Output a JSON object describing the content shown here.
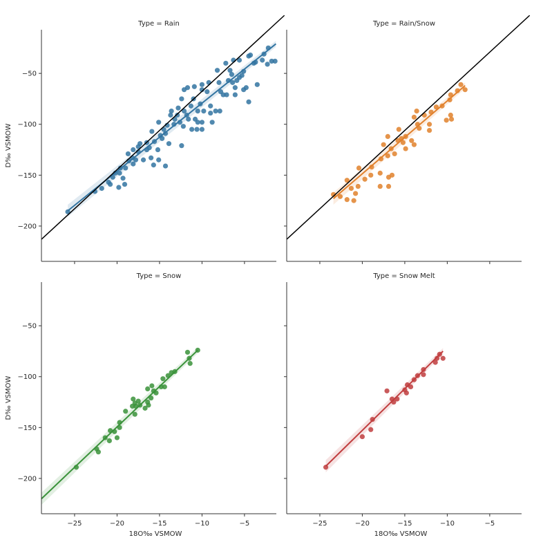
{
  "chart_data": {
    "type": "scatter",
    "layout": "facet-grid-2x2",
    "facet_variable": "Type",
    "xlabel": "18O‰ VSMOW",
    "ylabel": "D‰ VSMOW",
    "xlim": [
      -28.9,
      -1.25
    ],
    "ylim": [
      -234.7,
      -7.1
    ],
    "xticks": [
      -25,
      -20,
      -15,
      -10,
      -5
    ],
    "xtick_labels": [
      "−25",
      "−20",
      "−15",
      "−10",
      "−5"
    ],
    "yticks": [
      -50,
      -100,
      -150,
      -200
    ],
    "ytick_labels": [
      "−50",
      "−100",
      "−150",
      "−200"
    ],
    "grid": false,
    "reference_line": {
      "name": "meteoric water line",
      "color": "#000000",
      "points": [
        [
          -28.9,
          -213
        ],
        [
          -0.3,
          7
        ]
      ],
      "facets": [
        "Rain",
        "Rain/Snow"
      ]
    },
    "facets": [
      {
        "title": "Type = Rain",
        "name": "Rain",
        "color": "#3274a1",
        "fit": [
          [
            -25.8,
            -185
          ],
          [
            -1.3,
            -21
          ]
        ],
        "points": [
          [
            -25.8,
            -186
          ],
          [
            -22.6,
            -166
          ],
          [
            -21.8,
            -163
          ],
          [
            -21.0,
            -157
          ],
          [
            -20.5,
            -152
          ],
          [
            -20.8,
            -159
          ],
          [
            -19.8,
            -162
          ],
          [
            -19.1,
            -159
          ],
          [
            -19.3,
            -153
          ],
          [
            -19.7,
            -148
          ],
          [
            -19.0,
            -143
          ],
          [
            -18.7,
            -129
          ],
          [
            -18.6,
            -136
          ],
          [
            -18.1,
            -139
          ],
          [
            -17.8,
            -135
          ],
          [
            -18.2,
            -133
          ],
          [
            -16.9,
            -135
          ],
          [
            -17.3,
            -119
          ],
          [
            -16.5,
            -118
          ],
          [
            -16.2,
            -123
          ],
          [
            -15.9,
            -107
          ],
          [
            -16.0,
            -133
          ],
          [
            -15.7,
            -140
          ],
          [
            -15.1,
            -135
          ],
          [
            -14.3,
            -141
          ],
          [
            -15.1,
            -98
          ],
          [
            -14.9,
            -111
          ],
          [
            -14.5,
            -105
          ],
          [
            -14.3,
            -109
          ],
          [
            -15.2,
            -125
          ],
          [
            -13.9,
            -119
          ],
          [
            -13.7,
            -91
          ],
          [
            -13.6,
            -87
          ],
          [
            -13.2,
            -95
          ],
          [
            -12.8,
            -84
          ],
          [
            -12.6,
            -98
          ],
          [
            -12.4,
            -121
          ],
          [
            -12.2,
            -102
          ],
          [
            -12.4,
            -75
          ],
          [
            -12.1,
            -66
          ],
          [
            -11.7,
            -64
          ],
          [
            -11.8,
            -91
          ],
          [
            -11.3,
            -82
          ],
          [
            -11.0,
            -75
          ],
          [
            -11.2,
            -105
          ],
          [
            -10.6,
            -105
          ],
          [
            -10.8,
            -95
          ],
          [
            -10.9,
            -63
          ],
          [
            -10.0,
            -105
          ],
          [
            -10.0,
            -98
          ],
          [
            -10.5,
            -87
          ],
          [
            -10.2,
            -80
          ],
          [
            -9.8,
            -87
          ],
          [
            -10.0,
            -66
          ],
          [
            -10.0,
            -61
          ],
          [
            -9.4,
            -68
          ],
          [
            -9.2,
            -59
          ],
          [
            -9.0,
            -82
          ],
          [
            -8.8,
            -98
          ],
          [
            -9.0,
            -89
          ],
          [
            -8.4,
            -87
          ],
          [
            -7.9,
            -87
          ],
          [
            -8.0,
            -59
          ],
          [
            -7.8,
            -68
          ],
          [
            -7.5,
            -71
          ],
          [
            -7.1,
            -71
          ],
          [
            -6.9,
            -57
          ],
          [
            -6.1,
            -71
          ],
          [
            -5.6,
            -54
          ],
          [
            -5.1,
            -66
          ],
          [
            -4.8,
            -64
          ],
          [
            -4.5,
            -78
          ],
          [
            -6.5,
            -51
          ],
          [
            -6.4,
            -59
          ],
          [
            -5.9,
            -57
          ],
          [
            -5.3,
            -52
          ],
          [
            -5.1,
            -48
          ],
          [
            -8.2,
            -47
          ],
          [
            -7.2,
            -40
          ],
          [
            -6.3,
            -37
          ],
          [
            -5.6,
            -37
          ],
          [
            -4.5,
            -33
          ],
          [
            -3.5,
            -61
          ],
          [
            -3.7,
            -39
          ],
          [
            -3.9,
            -40
          ],
          [
            -2.9,
            -37
          ],
          [
            -2.3,
            -41
          ],
          [
            -2.7,
            -31
          ],
          [
            -2.2,
            -25
          ],
          [
            -1.8,
            -38
          ],
          [
            -1.4,
            -38
          ],
          [
            -4.3,
            -32
          ],
          [
            -6.7,
            -47
          ],
          [
            -6.1,
            -64
          ],
          [
            -10.5,
            -98
          ],
          [
            -11.6,
            -95
          ],
          [
            -12.1,
            -87
          ],
          [
            -12.9,
            -91
          ],
          [
            -13.3,
            -100
          ],
          [
            -14.1,
            -101
          ],
          [
            -14.7,
            -114
          ],
          [
            -15.6,
            -117
          ],
          [
            -16.5,
            -125
          ],
          [
            -17.5,
            -127
          ],
          [
            -17.5,
            -122
          ],
          [
            -18.1,
            -125
          ],
          [
            -19.6,
            -143
          ],
          [
            -20.2,
            -148
          ]
        ]
      },
      {
        "title": "Type = Rain/Snow",
        "name": "Rain/Snow",
        "color": "#e1812c",
        "fit": [
          [
            -23.4,
            -173
          ],
          [
            -7.9,
            -62
          ]
        ],
        "points": [
          [
            -23.4,
            -169
          ],
          [
            -21.8,
            -155
          ],
          [
            -22.6,
            -171
          ],
          [
            -21.8,
            -174
          ],
          [
            -21.0,
            -175
          ],
          [
            -21.3,
            -163
          ],
          [
            -20.8,
            -168
          ],
          [
            -20.5,
            -161
          ],
          [
            -20.4,
            -143
          ],
          [
            -19.7,
            -154
          ],
          [
            -19.0,
            -150
          ],
          [
            -18.9,
            -142
          ],
          [
            -17.9,
            -148
          ],
          [
            -17.9,
            -161
          ],
          [
            -16.9,
            -161
          ],
          [
            -16.9,
            -152
          ],
          [
            -16.5,
            -150
          ],
          [
            -17.8,
            -134
          ],
          [
            -17.0,
            -131
          ],
          [
            -17.5,
            -120
          ],
          [
            -17.0,
            -112
          ],
          [
            -16.6,
            -124
          ],
          [
            -16.2,
            -129
          ],
          [
            -15.7,
            -105
          ],
          [
            -15.4,
            -114
          ],
          [
            -15.2,
            -118
          ],
          [
            -14.9,
            -124
          ],
          [
            -14.2,
            -116
          ],
          [
            -13.9,
            -120
          ],
          [
            -13.9,
            -93
          ],
          [
            -13.6,
            -87
          ],
          [
            -13.5,
            -100
          ],
          [
            -13.3,
            -104
          ],
          [
            -12.7,
            -91
          ],
          [
            -12.1,
            -100
          ],
          [
            -12.1,
            -106
          ],
          [
            -11.9,
            -88
          ],
          [
            -11.3,
            -83
          ],
          [
            -10.6,
            -82
          ],
          [
            -10.1,
            -96
          ],
          [
            -9.6,
            -91
          ],
          [
            -9.5,
            -95
          ],
          [
            -9.7,
            -76
          ],
          [
            -9.6,
            -71
          ],
          [
            -8.8,
            -67
          ],
          [
            -8.4,
            -61
          ],
          [
            -7.9,
            -66
          ],
          [
            -14.9,
            -112
          ],
          [
            -15.8,
            -116
          ]
        ]
      },
      {
        "title": "Type = Snow",
        "name": "Snow",
        "color": "#3a923a",
        "fit": [
          [
            -28.9,
            -220
          ],
          [
            -10.5,
            -74
          ]
        ],
        "points": [
          [
            -24.8,
            -189
          ],
          [
            -22.4,
            -171
          ],
          [
            -22.2,
            -174
          ],
          [
            -21.4,
            -160
          ],
          [
            -20.9,
            -163
          ],
          [
            -20.0,
            -160
          ],
          [
            -20.8,
            -153
          ],
          [
            -20.3,
            -154
          ],
          [
            -19.7,
            -150
          ],
          [
            -19.7,
            -145
          ],
          [
            -19.0,
            -134
          ],
          [
            -18.2,
            -129
          ],
          [
            -17.9,
            -126
          ],
          [
            -17.9,
            -137
          ],
          [
            -17.8,
            -129
          ],
          [
            -17.5,
            -124
          ],
          [
            -18.1,
            -122
          ],
          [
            -17.3,
            -128
          ],
          [
            -16.7,
            -131
          ],
          [
            -16.3,
            -128
          ],
          [
            -16.4,
            -125
          ],
          [
            -16.4,
            -112
          ],
          [
            -15.9,
            -109
          ],
          [
            -15.7,
            -114
          ],
          [
            -15.4,
            -116
          ],
          [
            -16.0,
            -121
          ],
          [
            -14.8,
            -110
          ],
          [
            -14.4,
            -110
          ],
          [
            -14.6,
            -102
          ],
          [
            -14.0,
            -99
          ],
          [
            -13.6,
            -96
          ],
          [
            -13.2,
            -95
          ],
          [
            -11.7,
            -76
          ],
          [
            -11.4,
            -87
          ],
          [
            -11.5,
            -82
          ],
          [
            -10.5,
            -74
          ]
        ]
      },
      {
        "title": "Type = Snow Melt",
        "name": "Snow Melt",
        "color": "#c03d3e",
        "fit": [
          [
            -24.3,
            -188
          ],
          [
            -10.5,
            -75
          ]
        ],
        "points": [
          [
            -24.3,
            -189
          ],
          [
            -20.0,
            -159
          ],
          [
            -19.0,
            -152
          ],
          [
            -18.8,
            -142
          ],
          [
            -17.1,
            -114
          ],
          [
            -16.5,
            -122
          ],
          [
            -15.9,
            -122
          ],
          [
            -16.3,
            -125
          ],
          [
            -15.0,
            -113
          ],
          [
            -14.8,
            -116
          ],
          [
            -14.7,
            -108
          ],
          [
            -14.3,
            -110
          ],
          [
            -13.9,
            -103
          ],
          [
            -13.5,
            -99
          ],
          [
            -12.8,
            -93
          ],
          [
            -12.8,
            -98
          ],
          [
            -11.4,
            -86
          ],
          [
            -11.2,
            -82
          ],
          [
            -10.9,
            -78
          ],
          [
            -10.5,
            -82
          ]
        ]
      }
    ]
  }
}
